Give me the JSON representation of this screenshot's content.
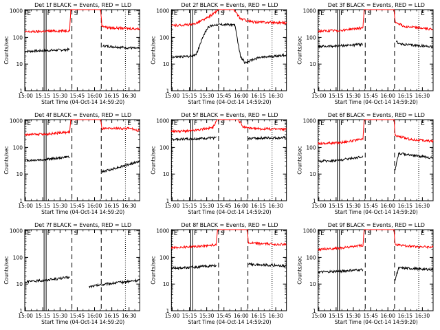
{
  "figure": {
    "shared": {
      "ylabel": "Counts/sec",
      "xlabel": "Start Time (04-Oct-14 14:59:20)",
      "x_ticks": [
        "15:00",
        "15:15",
        "15:30",
        "15:45",
        "16:00",
        "16:15",
        "16:30"
      ],
      "y_ticks": [
        "1",
        "10",
        "100",
        "1000"
      ],
      "series_colors": {
        "events": "#000000",
        "lld": "#ff0000"
      },
      "markers": [
        {
          "label": "E",
          "time": 0.25,
          "style": "dotted"
        },
        {
          "label": "F",
          "time": 17.7,
          "style": "solid-double"
        },
        {
          "label": "S",
          "time": 41.0,
          "style": "dashed"
        },
        {
          "label": "",
          "time": 66.5,
          "style": "dashed"
        },
        {
          "label": "E",
          "time": 87.5,
          "style": "dotted"
        }
      ]
    }
  },
  "chart_data": [
    {
      "type": "line",
      "title": "Det 1f BLACK = Events, RED = LLD",
      "xlabel": "Start Time (04-Oct-14 14:59:20)",
      "ylabel": "Counts/sec",
      "xlim_minutes": [
        0,
        100
      ],
      "ylim": [
        1,
        1100
      ],
      "yscale": "log",
      "series": [
        {
          "name": "Events",
          "color": "#000000",
          "segments": [
            [
              0,
              30
            ],
            [
              18,
              32
            ],
            [
              39,
              35
            ],
            [
              40,
              null
            ],
            [
              67,
              null
            ],
            [
              68,
              48
            ],
            [
              100,
              38
            ]
          ]
        },
        {
          "name": "LLD",
          "color": "#ff0000",
          "segments": [
            [
              0,
              160
            ],
            [
              18,
              170
            ],
            [
              39,
              180
            ],
            [
              40,
              1100
            ],
            [
              66,
              1100
            ],
            [
              67,
              280
            ],
            [
              72,
              230
            ],
            [
              100,
              210
            ]
          ]
        }
      ]
    },
    {
      "type": "line",
      "title": "Det 2f BLACK = Events, RED = LLD",
      "xlabel": "Start Time (04-Oct-14 14:59:20)",
      "ylabel": "Counts/sec",
      "xlim_minutes": [
        0,
        100
      ],
      "ylim": [
        1,
        1100
      ],
      "yscale": "log",
      "series": [
        {
          "name": "Events",
          "color": "#000000",
          "segments": [
            [
              0,
              18
            ],
            [
              18,
              20
            ],
            [
              22,
              25
            ],
            [
              27,
              100
            ],
            [
              32,
              250
            ],
            [
              39,
              300
            ],
            [
              48,
              300
            ],
            [
              55,
              300
            ],
            [
              60,
              20
            ],
            [
              64,
              11
            ],
            [
              75,
              17
            ],
            [
              100,
              22
            ]
          ]
        },
        {
          "name": "LLD",
          "color": "#ff0000",
          "segments": [
            [
              0,
              280
            ],
            [
              18,
              300
            ],
            [
              30,
              500
            ],
            [
              37,
              800
            ],
            [
              41,
              1100
            ],
            [
              54,
              1100
            ],
            [
              60,
              500
            ],
            [
              70,
              380
            ],
            [
              100,
              350
            ]
          ]
        }
      ]
    },
    {
      "type": "line",
      "title": "Det 3f BLACK = Events, RED = LLD",
      "xlabel": "Start Time (04-Oct-14 14:59:20)",
      "ylabel": "Counts/sec",
      "xlim_minutes": [
        0,
        100
      ],
      "ylim": [
        1,
        1100
      ],
      "yscale": "log",
      "series": [
        {
          "name": "Events",
          "color": "#000000",
          "segments": [
            [
              0,
              45
            ],
            [
              18,
              48
            ],
            [
              39,
              55
            ],
            [
              40,
              null
            ],
            [
              67,
              null
            ],
            [
              68,
              70
            ],
            [
              72,
              55
            ],
            [
              100,
              45
            ]
          ]
        },
        {
          "name": "LLD",
          "color": "#ff0000",
          "segments": [
            [
              0,
              170
            ],
            [
              18,
              180
            ],
            [
              39,
              230
            ],
            [
              40,
              1100
            ],
            [
              66,
              1100
            ],
            [
              67,
              380
            ],
            [
              75,
              260
            ],
            [
              100,
              200
            ]
          ]
        }
      ]
    },
    {
      "type": "line",
      "title": "Det 4f BLACK = Events, RED = LLD",
      "xlabel": "Start Time (04-Oct-14 14:59:20)",
      "ylabel": "Counts/sec",
      "xlim_minutes": [
        0,
        100
      ],
      "ylim": [
        1,
        1100
      ],
      "yscale": "log",
      "series": [
        {
          "name": "Events",
          "color": "#000000",
          "segments": [
            [
              0,
              32
            ],
            [
              18,
              35
            ],
            [
              39,
              45
            ],
            [
              40,
              null
            ],
            [
              66,
              null
            ],
            [
              67,
              12
            ],
            [
              75,
              15
            ],
            [
              100,
              30
            ]
          ]
        },
        {
          "name": "LLD",
          "color": "#ff0000",
          "segments": [
            [
              0,
              300
            ],
            [
              18,
              310
            ],
            [
              39,
              380
            ],
            [
              40,
              1100
            ],
            [
              66,
              1100
            ],
            [
              67,
              500
            ],
            [
              90,
              520
            ],
            [
              100,
              420
            ]
          ]
        }
      ]
    },
    {
      "type": "line",
      "title": "Det 5f BLACK = Events, RED = LLD",
      "xlabel": "Start Time (04-Oct-14 14:59:20)",
      "ylabel": "Counts/sec",
      "xlim_minutes": [
        0,
        100
      ],
      "ylim": [
        1,
        1100
      ],
      "yscale": "log",
      "series": [
        {
          "name": "Events",
          "color": "#000000",
          "segments": [
            [
              0,
              200
            ],
            [
              18,
              210
            ],
            [
              39,
              230
            ],
            [
              40,
              null
            ],
            [
              66,
              null
            ],
            [
              67,
              220
            ],
            [
              100,
              230
            ]
          ]
        },
        {
          "name": "LLD",
          "color": "#ff0000",
          "segments": [
            [
              0,
              400
            ],
            [
              18,
              420
            ],
            [
              36,
              550
            ],
            [
              40,
              1100
            ],
            [
              58,
              1100
            ],
            [
              62,
              600
            ],
            [
              70,
              500
            ],
            [
              100,
              480
            ]
          ]
        }
      ]
    },
    {
      "type": "line",
      "title": "Det 6f BLACK = Events, RED = LLD",
      "xlabel": "Start Time (04-Oct-14 14:59:20)",
      "ylabel": "Counts/sec",
      "xlim_minutes": [
        0,
        100
      ],
      "ylim": [
        1,
        1100
      ],
      "yscale": "log",
      "series": [
        {
          "name": "Events",
          "color": "#000000",
          "segments": [
            [
              0,
              30
            ],
            [
              18,
              33
            ],
            [
              39,
              45
            ],
            [
              40,
              null
            ],
            [
              66,
              null
            ],
            [
              67,
              15
            ],
            [
              70,
              60
            ],
            [
              100,
              40
            ]
          ]
        },
        {
          "name": "LLD",
          "color": "#ff0000",
          "segments": [
            [
              0,
              140
            ],
            [
              18,
              150
            ],
            [
              39,
              200
            ],
            [
              40,
              1100
            ],
            [
              66,
              1100
            ],
            [
              67,
              280
            ],
            [
              80,
              200
            ],
            [
              100,
              170
            ]
          ]
        }
      ]
    },
    {
      "type": "line",
      "title": "Det 7f BLACK = Events, RED = LLD",
      "xlabel": "Start Time (04-Oct-14 14:59:20)",
      "ylabel": "Counts/sec",
      "xlim_minutes": [
        0,
        100
      ],
      "ylim": [
        1,
        1100
      ],
      "yscale": "log",
      "series": [
        {
          "name": "Events",
          "color": "#000000",
          "segments": [
            [
              0,
              12
            ],
            [
              18,
              14
            ],
            [
              39,
              18
            ],
            [
              40,
              null
            ],
            [
              55,
              null
            ],
            [
              56,
              8
            ],
            [
              70,
              10
            ],
            [
              100,
              14
            ]
          ]
        }
      ]
    },
    {
      "type": "line",
      "title": "Det 8f BLACK = Events, RED = LLD",
      "xlabel": "Start Time (04-Oct-14 14:59:20)",
      "ylabel": "Counts/sec",
      "xlim_minutes": [
        0,
        100
      ],
      "ylim": [
        1,
        1100
      ],
      "yscale": "log",
      "series": [
        {
          "name": "Events",
          "color": "#000000",
          "segments": [
            [
              0,
              40
            ],
            [
              18,
              42
            ],
            [
              39,
              50
            ],
            [
              40,
              null
            ],
            [
              66,
              null
            ],
            [
              67,
              55
            ],
            [
              100,
              48
            ]
          ]
        },
        {
          "name": "LLD",
          "color": "#ff0000",
          "segments": [
            [
              0,
              230
            ],
            [
              18,
              250
            ],
            [
              39,
              300
            ],
            [
              40,
              1100
            ],
            [
              66,
              1100
            ],
            [
              67,
              340
            ],
            [
              100,
              300
            ]
          ]
        }
      ]
    },
    {
      "type": "line",
      "title": "Det 9f BLACK = Events, RED = LLD",
      "xlabel": "Start Time (04-Oct-14 14:59:20)",
      "ylabel": "Counts/sec",
      "xlim_minutes": [
        0,
        100
      ],
      "ylim": [
        1,
        1100
      ],
      "yscale": "log",
      "series": [
        {
          "name": "Events",
          "color": "#000000",
          "segments": [
            [
              0,
              28
            ],
            [
              18,
              30
            ],
            [
              39,
              35
            ],
            [
              40,
              null
            ],
            [
              66,
              null
            ],
            [
              67,
              15
            ],
            [
              70,
              40
            ],
            [
              100,
              35
            ]
          ]
        },
        {
          "name": "LLD",
          "color": "#ff0000",
          "segments": [
            [
              0,
              200
            ],
            [
              18,
              220
            ],
            [
              39,
              280
            ],
            [
              40,
              1100
            ],
            [
              66,
              1100
            ],
            [
              67,
              300
            ],
            [
              80,
              260
            ],
            [
              100,
              240
            ]
          ]
        }
      ]
    }
  ]
}
